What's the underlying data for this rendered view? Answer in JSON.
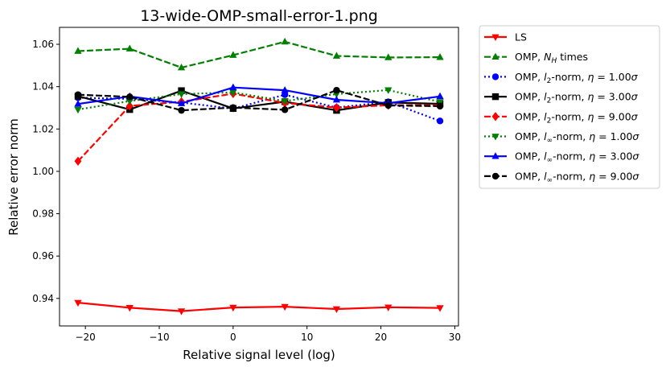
{
  "chart_data": {
    "type": "line",
    "title": "13-wide-OMP-small-error-1.png",
    "xlabel": "Relative signal level (log)",
    "ylabel": "Relative error norm",
    "xlim": [
      -23.5,
      30.5
    ],
    "ylim": [
      0.927,
      1.068
    ],
    "xticks": [
      -20,
      -10,
      0,
      10,
      20,
      30
    ],
    "yticks": [
      0.94,
      0.96,
      0.98,
      1.0,
      1.02,
      1.04,
      1.06
    ],
    "xtick_labels": [
      "−20",
      "−10",
      "0",
      "10",
      "20",
      "30"
    ],
    "ytick_labels": [
      "0.94",
      "0.96",
      "0.98",
      "1.00",
      "1.02",
      "1.04",
      "1.06"
    ],
    "grid": false,
    "legend_position": "outside-right",
    "x": [
      -21,
      -14,
      -7,
      0,
      7,
      14,
      21,
      28
    ],
    "series": [
      {
        "label_parts": [
          {
            "t": "LS"
          }
        ],
        "color": "#ff0000",
        "style": "solid",
        "marker": "tri-down",
        "values": [
          0.938,
          0.9356,
          0.934,
          0.9357,
          0.9361,
          0.935,
          0.9358,
          0.9355
        ]
      },
      {
        "label_parts": [
          {
            "t": "OMP, "
          },
          {
            "t": "N",
            "i": true
          },
          {
            "t": "H",
            "sub": true,
            "i": true
          },
          {
            "t": " times"
          }
        ],
        "color": "#008000",
        "style": "dashed",
        "marker": "tri-up",
        "values": [
          1.0568,
          1.0579,
          1.049,
          1.0549,
          1.0612,
          1.0545,
          1.0538,
          1.0539
        ]
      },
      {
        "label_parts": [
          {
            "t": "OMP, "
          },
          {
            "t": "l",
            "i": true
          },
          {
            "t": "2",
            "sub": true
          },
          {
            "t": "-norm, "
          },
          {
            "t": "η",
            "i": true
          },
          {
            "t": " = 1.00"
          },
          {
            "t": "σ",
            "i": true
          }
        ],
        "color": "#0000ff",
        "style": "dotted",
        "marker": "circle",
        "values": [
          1.0348,
          1.0342,
          1.0325,
          1.0296,
          1.0362,
          1.0301,
          1.0328,
          1.0238
        ]
      },
      {
        "label_parts": [
          {
            "t": "OMP, "
          },
          {
            "t": "l",
            "i": true
          },
          {
            "t": "2",
            "sub": true
          },
          {
            "t": "-norm, "
          },
          {
            "t": "η",
            "i": true
          },
          {
            "t": " = 3.00"
          },
          {
            "t": "σ",
            "i": true
          }
        ],
        "color": "#000000",
        "style": "solid",
        "marker": "square",
        "values": [
          1.0355,
          1.0292,
          1.0381,
          1.0297,
          1.0329,
          1.0288,
          1.0325,
          1.0319
        ]
      },
      {
        "label_parts": [
          {
            "t": "OMP, "
          },
          {
            "t": "l",
            "i": true
          },
          {
            "t": "2",
            "sub": true
          },
          {
            "t": "-norm, "
          },
          {
            "t": "η",
            "i": true
          },
          {
            "t": " = 9.00"
          },
          {
            "t": "σ",
            "i": true
          }
        ],
        "color": "#ff0000",
        "style": "dashed",
        "marker": "diamond",
        "values": [
          1.0048,
          1.0309,
          1.0329,
          1.0367,
          1.0323,
          1.0301,
          1.0312,
          1.0313
        ]
      },
      {
        "label_parts": [
          {
            "t": "OMP, "
          },
          {
            "t": "l",
            "i": true
          },
          {
            "t": "∞",
            "sub": true
          },
          {
            "t": "-norm, "
          },
          {
            "t": "η",
            "i": true
          },
          {
            "t": " = 1.00"
          },
          {
            "t": "σ",
            "i": true
          }
        ],
        "color": "#008000",
        "style": "dotted",
        "marker": "tri-down",
        "values": [
          1.0292,
          1.0332,
          1.0365,
          1.0373,
          1.0332,
          1.0365,
          1.0384,
          1.0328
        ]
      },
      {
        "label_parts": [
          {
            "t": "OMP, "
          },
          {
            "t": "l",
            "i": true
          },
          {
            "t": "∞",
            "sub": true
          },
          {
            "t": "-norm, "
          },
          {
            "t": "η",
            "i": true
          },
          {
            "t": " = 3.00"
          },
          {
            "t": "σ",
            "i": true
          }
        ],
        "color": "#0000ff",
        "style": "solid",
        "marker": "tri-up",
        "values": [
          1.0318,
          1.0354,
          1.0321,
          1.0396,
          1.0383,
          1.0338,
          1.0322,
          1.0354
        ]
      },
      {
        "label_parts": [
          {
            "t": "OMP, "
          },
          {
            "t": "l",
            "i": true
          },
          {
            "t": "∞",
            "sub": true
          },
          {
            "t": "-norm, "
          },
          {
            "t": "η",
            "i": true
          },
          {
            "t": " = 9.00"
          },
          {
            "t": "σ",
            "i": true
          }
        ],
        "color": "#000000",
        "style": "dashed",
        "marker": "circle",
        "values": [
          1.0362,
          1.0352,
          1.0288,
          1.0301,
          1.0291,
          1.0383,
          1.0311,
          1.0308
        ]
      }
    ]
  }
}
